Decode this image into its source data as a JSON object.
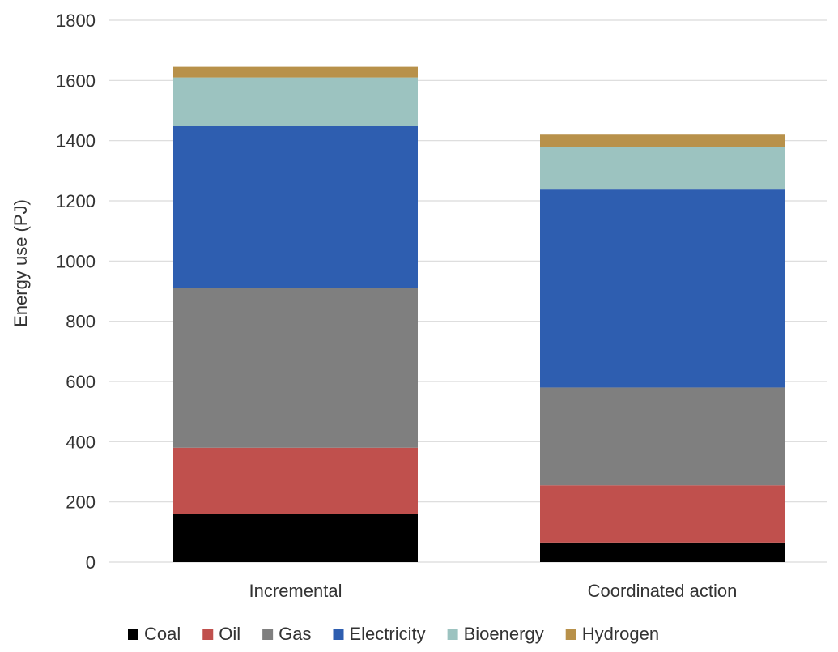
{
  "chart_data": {
    "type": "bar",
    "stacked": true,
    "categories": [
      "Incremental",
      "Coordinated action"
    ],
    "ylabel": "Energy use (PJ)",
    "ylim": [
      0,
      1800
    ],
    "yticks": [
      0,
      200,
      400,
      600,
      800,
      1000,
      1200,
      1400,
      1600,
      1800
    ],
    "grid": true,
    "legend_position": "bottom",
    "series": [
      {
        "name": "Coal",
        "color": "#000000",
        "values": [
          160,
          65
        ]
      },
      {
        "name": "Oil",
        "color": "#c0504d",
        "values": [
          220,
          190
        ]
      },
      {
        "name": "Gas",
        "color": "#7f7f7f",
        "values": [
          530,
          325
        ]
      },
      {
        "name": "Electricity",
        "color": "#2e5eb0",
        "values": [
          540,
          660
        ]
      },
      {
        "name": "Bioenergy",
        "color": "#9cc3c0",
        "values": [
          160,
          140
        ]
      },
      {
        "name": "Hydrogen",
        "color": "#b8914a",
        "values": [
          35,
          40
        ]
      }
    ]
  }
}
